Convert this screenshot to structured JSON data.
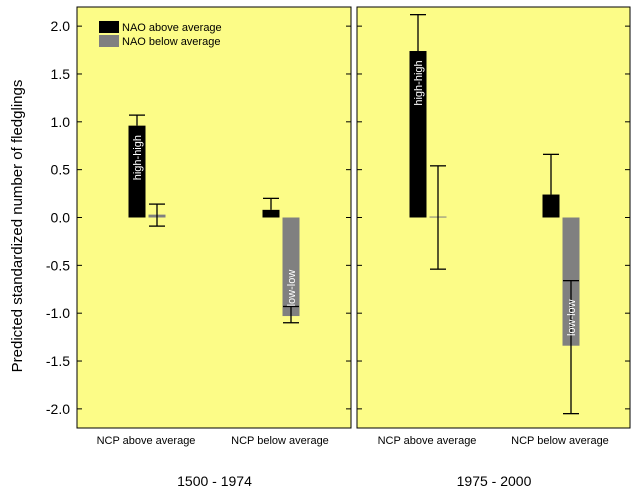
{
  "chart_data": {
    "type": "bar",
    "ylabel": "Predicted standardized number of fledglings",
    "ylim": [
      -2.2,
      2.2
    ],
    "yticks": [
      2.0,
      1.5,
      1.0,
      0.5,
      0.0,
      -0.5,
      -1.0,
      -1.5,
      -2.0
    ],
    "ytick_labels": [
      "2.0",
      "1.5",
      "1.0",
      "0.5",
      "0.0",
      "-0.5",
      "-1.0",
      "-1.5",
      "-2.0"
    ],
    "background_color": "#FCFC87",
    "legend": {
      "placement": "top-left",
      "entries": [
        {
          "label": "NAO above average",
          "color": "#000000"
        },
        {
          "label": "NAO below average",
          "color": "#808080"
        }
      ]
    },
    "panels": [
      {
        "title": "1500 - 1974",
        "categories": [
          "NCP above average",
          "NCP below average"
        ],
        "series": [
          {
            "name": "NAO above average",
            "color": "#000000",
            "values": [
              0.96,
              0.08
            ],
            "error_upper": [
              1.07,
              0.2
            ],
            "error_lower": [
              0.96,
              0.08
            ]
          },
          {
            "name": "NAO below average",
            "color": "#808080",
            "values": [
              0.03,
              -1.03
            ],
            "error_upper": [
              0.14,
              -0.93
            ],
            "error_lower": [
              -0.09,
              -1.1
            ]
          }
        ],
        "bar_labels": [
          {
            "series": 0,
            "category": 0,
            "text": "high-high"
          },
          {
            "series": 1,
            "category": 1,
            "text": "low-low"
          }
        ]
      },
      {
        "title": "1975 - 2000",
        "categories": [
          "NCP above average",
          "NCP below average"
        ],
        "series": [
          {
            "name": "NAO above average",
            "color": "#000000",
            "values": [
              1.74,
              0.24
            ],
            "error_upper": [
              2.12,
              0.66
            ],
            "error_lower": [
              1.74,
              0.24
            ]
          },
          {
            "name": "NAO below average",
            "color": "#808080",
            "values": [
              0.01,
              -1.34
            ],
            "error_upper": [
              0.54,
              -0.66
            ],
            "error_lower": [
              -0.54,
              -2.05
            ]
          }
        ],
        "bar_labels": [
          {
            "series": 0,
            "category": 0,
            "text": "high-high"
          },
          {
            "series": 1,
            "category": 1,
            "text": "low-low"
          }
        ]
      }
    ]
  }
}
